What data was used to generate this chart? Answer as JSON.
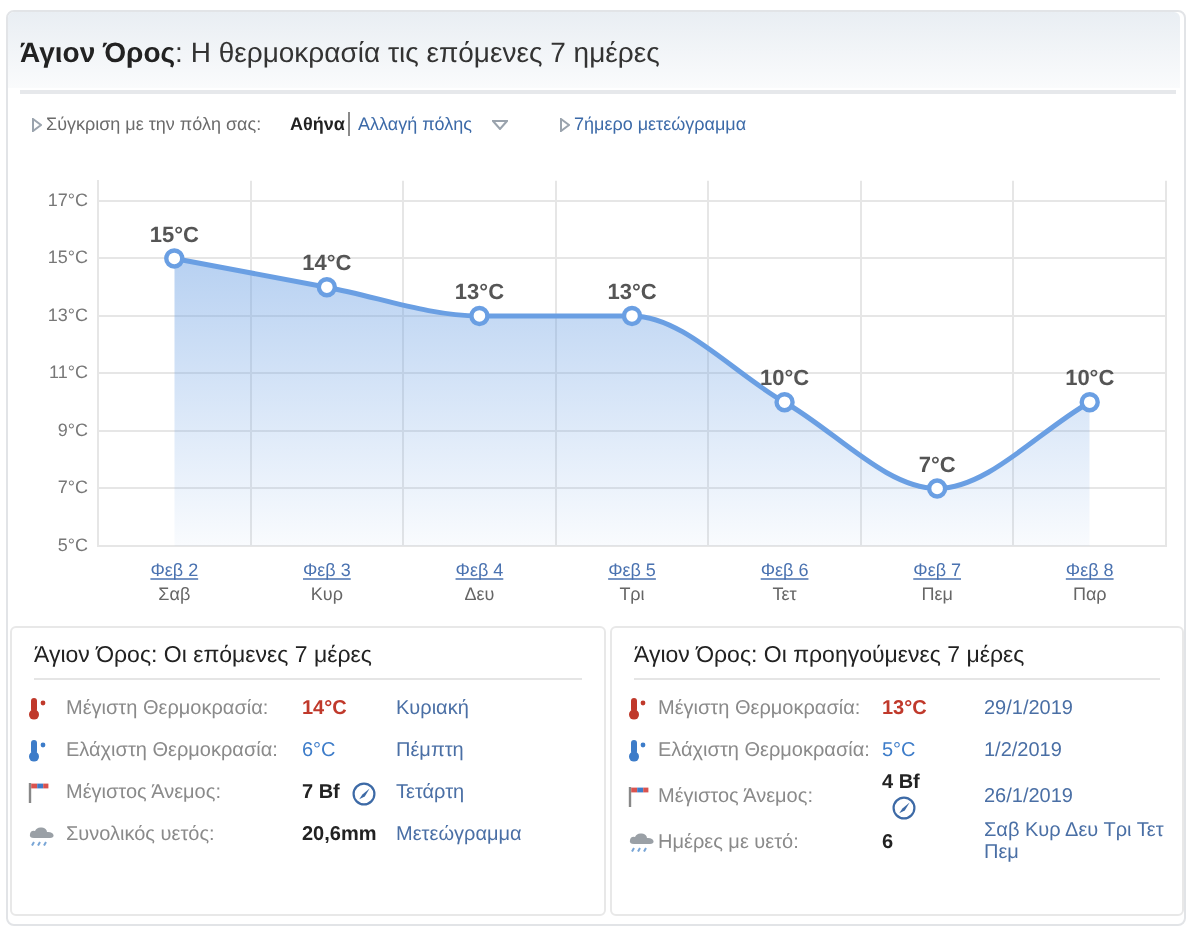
{
  "chart_data": [
    {
      "type": "area",
      "title": "Άγιον Όρος: Η θερμοκρασία τις επόμενες 7 ημέρες",
      "annotations": [
        "Σύγκριση με την πόλη σας:",
        "Αθήνα",
        "Αλλαγή πόλης",
        "7ήμερο μετεώγραμμα"
      ],
      "categories": [
        "Φεβ 2\nΣαβ",
        "Φεβ 3\nΚυρ",
        "Φεβ 4\nΔευ",
        "Φεβ 5\nΤρι",
        "Φεβ 6\nΤετ",
        "Φεβ 7\nΠεμ",
        "Φεβ 8\nΠαρ"
      ],
      "series": [
        {
          "color": "#6a9fe3",
          "values": [
            15,
            14,
            13,
            13,
            10,
            7,
            10
          ],
          "value_labels": [
            "15°C",
            "14°C",
            "13°C",
            "13°C",
            "10°C",
            "7°C",
            "10°C"
          ]
        }
      ],
      "ylim": [
        5,
        17.7
      ],
      "yticks": [
        {
          "value": 5,
          "label": "5°C"
        },
        {
          "value": 7,
          "label": "7°C"
        },
        {
          "value": 9,
          "label": "9°C"
        },
        {
          "value": 11,
          "label": "11°C"
        },
        {
          "value": 13,
          "label": "13°C"
        },
        {
          "value": 15,
          "label": "15°C"
        },
        {
          "value": 17,
          "label": "17°C"
        }
      ],
      "grid": true,
      "marker": "circle"
    },
    {
      "type": "other",
      "title": "Άγιον Όρος: Οι επόμενες 7 μέρες",
      "annotations": [
        "Μέγιστη Θερμοκρασία:",
        "14°C",
        "Κυριακή",
        "Ελάχιστη Θερμοκρασία:",
        "6°C",
        "Πέμπτη",
        "Μέγιστος Άνεμος:",
        "7 Bf",
        "Τετάρτη",
        "Συνολικός υετός:",
        "20,6mm",
        "Μετεώγραμμα"
      ]
    },
    {
      "type": "other",
      "title": "Άγιον Όρος: Οι προηγούμενες 7 μέρες",
      "annotations": [
        "Μέγιστη Θερμοκρασία:",
        "13°C",
        "29/1/2019",
        "Ελάχιστη Θερμοκρασία:",
        "5°C",
        "1/2/2019",
        "Μέγιστος Άνεμος:",
        "4 Bf",
        "26/1/2019",
        "Ημέρες με υετό:",
        "6",
        "Σαβ Κυρ Δευ Τρι Τετ Πεμ"
      ]
    }
  ]
}
